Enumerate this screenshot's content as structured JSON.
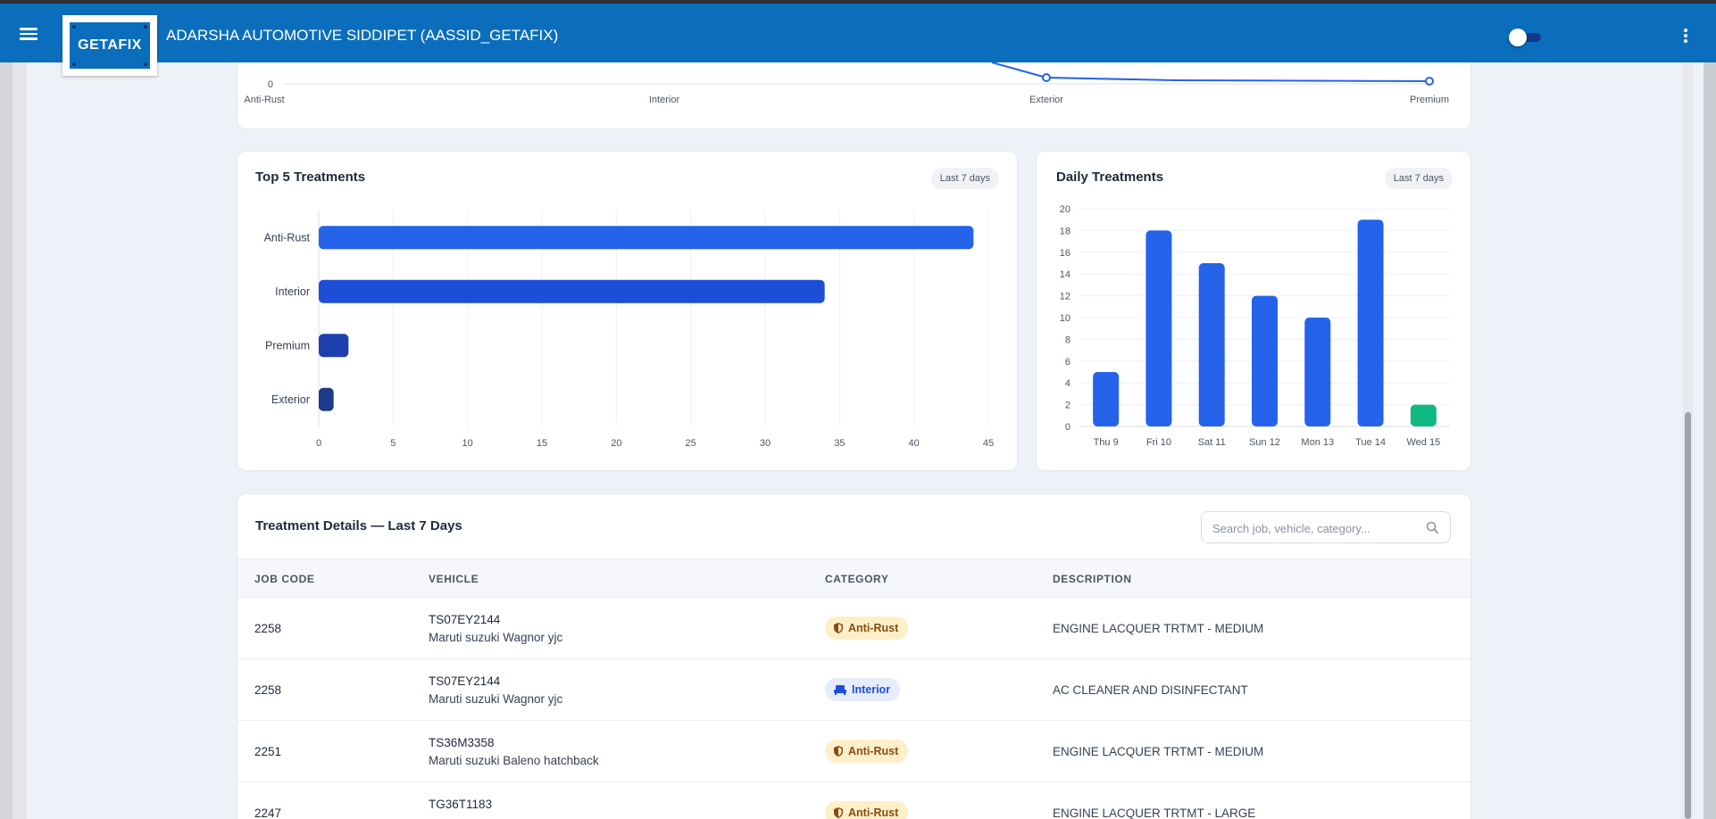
{
  "appbar": {
    "title": "ADARSHA AUTOMOTIVE SIDDIPET (AASSID_GETAFIX)",
    "logo_text": "GETAFIX",
    "colors": {
      "bar": "#0a6ebd",
      "toggle_track": "#0f3a8a"
    }
  },
  "top_chart": {
    "type": "line",
    "categories": [
      "Anti-Rust",
      "Interior",
      "Exterior",
      "Premium"
    ],
    "y_tick_visible": "0",
    "color": "#2563eb"
  },
  "top5": {
    "title": "Top 5 Treatments",
    "chip": "Last 7 days"
  },
  "daily": {
    "title": "Daily Treatments",
    "chip": "Last 7 days"
  },
  "chart_data": [
    {
      "type": "bar",
      "orientation": "horizontal",
      "title": "Top 5 Treatments",
      "categories": [
        "Anti-Rust",
        "Interior",
        "Premium",
        "Exterior"
      ],
      "values": [
        44,
        34,
        2,
        1
      ],
      "xlim": [
        0,
        45
      ],
      "x_ticks": [
        0,
        5,
        10,
        15,
        20,
        25,
        30,
        35,
        40,
        45
      ],
      "colors": [
        "#2563eb",
        "#1d4ed8",
        "#1e40af",
        "#1e3a8a"
      ],
      "grid": true
    },
    {
      "type": "bar",
      "title": "Daily Treatments",
      "categories": [
        "Thu 9",
        "Fri 10",
        "Sat 11",
        "Sun 12",
        "Mon 13",
        "Tue 14",
        "Wed 15"
      ],
      "values": [
        5,
        18,
        15,
        12,
        10,
        19,
        2
      ],
      "ylim": [
        0,
        20
      ],
      "y_ticks": [
        0,
        2,
        4,
        6,
        8,
        10,
        12,
        14,
        16,
        18,
        20
      ],
      "colors": [
        "#2563eb",
        "#2563eb",
        "#2563eb",
        "#2563eb",
        "#2563eb",
        "#2563eb",
        "#10b981"
      ],
      "grid": true
    }
  ],
  "details": {
    "title": "Treatment Details — Last 7 Days",
    "search_placeholder": "Search job, vehicle, category...",
    "columns": [
      "JOB CODE",
      "VEHICLE",
      "CATEGORY",
      "DESCRIPTION"
    ],
    "rows": [
      {
        "job": "2258",
        "plate": "TS07EY2144",
        "model": "Maruti suzuki Wagnor yjc",
        "category": "Anti-Rust",
        "description": "ENGINE LACQUER TRTMT - MEDIUM"
      },
      {
        "job": "2258",
        "plate": "TS07EY2144",
        "model": "Maruti suzuki Wagnor yjc",
        "category": "Interior",
        "description": "AC CLEANER AND DISINFECTANT"
      },
      {
        "job": "2251",
        "plate": "TS36M3358",
        "model": "Maruti suzuki Baleno hatchback",
        "category": "Anti-Rust",
        "description": "ENGINE LACQUER TRTMT - MEDIUM"
      },
      {
        "job": "2247",
        "plate": "TG36T1183",
        "model": "",
        "category": "Anti-Rust",
        "description": "ENGINE LACQUER TRTMT - LARGE"
      }
    ]
  }
}
